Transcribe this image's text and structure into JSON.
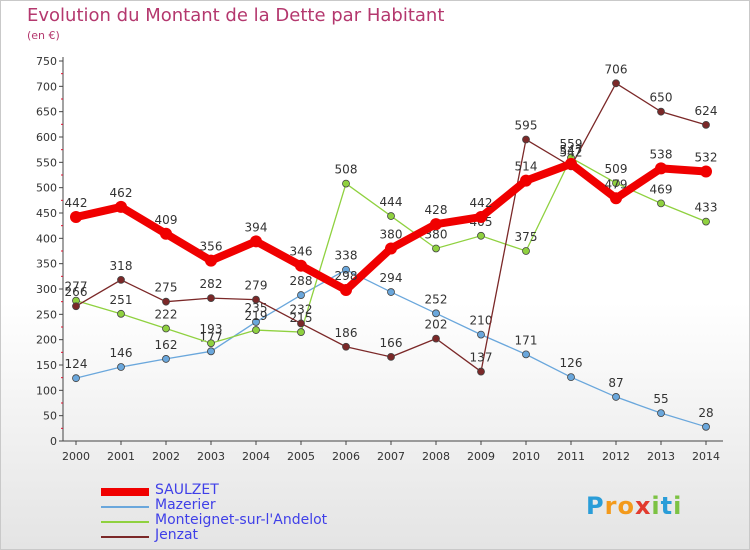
{
  "header": {
    "title": "Evolution du Montant de la Dette par Habitant",
    "subtitle": "(en €)"
  },
  "logo": {
    "letters": [
      "P",
      "r",
      "o",
      "x",
      "i",
      "t",
      "i"
    ],
    "colors": [
      "#2a9dd8",
      "#f39a1c",
      "#f39a1c",
      "#e23b2e",
      "#7cc243",
      "#2a9dd8",
      "#7cc243"
    ]
  },
  "chart_data": {
    "type": "line",
    "title": "Evolution du Montant de la Dette par Habitant",
    "subtitle": "(en €)",
    "xlabel": "",
    "ylabel": "",
    "x": [
      "2000",
      "2001",
      "2002",
      "2003",
      "2004",
      "2005",
      "2006",
      "2007",
      "2008",
      "2009",
      "2010",
      "2011",
      "2012",
      "2013",
      "2014"
    ],
    "yticks": [
      "0",
      "50",
      "100",
      "150",
      "200",
      "250",
      "300",
      "350",
      "400",
      "450",
      "500",
      "550",
      "600",
      "650",
      "700",
      "750"
    ],
    "ylim": [
      0,
      750
    ],
    "grid": false,
    "legend_position": "bottom-left",
    "series": [
      {
        "name": "SAULZET",
        "color": "#f00000",
        "bold": true,
        "values": [
          442,
          462,
          409,
          356,
          394,
          346,
          298,
          380,
          428,
          442,
          514,
          547,
          479,
          538,
          532
        ],
        "labels": [
          "442",
          "462",
          "409",
          "356",
          "394",
          "346",
          "298",
          "380",
          "428",
          "442",
          "514",
          "547",
          "479",
          "538",
          "532"
        ]
      },
      {
        "name": "Mazerier",
        "color": "#6aa7dc",
        "values": [
          124,
          146,
          162,
          177,
          235,
          288,
          338,
          294,
          252,
          210,
          171,
          126,
          87,
          55,
          28
        ],
        "labels": [
          "124",
          "146",
          "162",
          "177",
          "235",
          "288",
          "338",
          "294",
          "252",
          "210",
          "171",
          "126",
          "87",
          "55",
          "28"
        ]
      },
      {
        "name": "Monteignet-sur-l'Andelot",
        "color": "#8fd13f",
        "values": [
          277,
          251,
          222,
          193,
          219,
          215,
          508,
          444,
          380,
          405,
          375,
          559,
          509,
          469,
          433
        ],
        "labels": [
          "277",
          "251",
          "222",
          "193",
          "219",
          "215",
          "508",
          "444",
          "380",
          "405",
          "375",
          "559",
          "509",
          "469",
          "433"
        ]
      },
      {
        "name": "Jenzat",
        "color": "#7b2828",
        "values": [
          266,
          318,
          275,
          282,
          279,
          232,
          186,
          166,
          202,
          137,
          595,
          542,
          706,
          650,
          624
        ],
        "labels": [
          "266",
          "318",
          "275",
          "282",
          "279",
          "232",
          "186",
          "166",
          "202",
          "137",
          "595",
          "542",
          "706",
          "650",
          "624"
        ]
      }
    ]
  }
}
